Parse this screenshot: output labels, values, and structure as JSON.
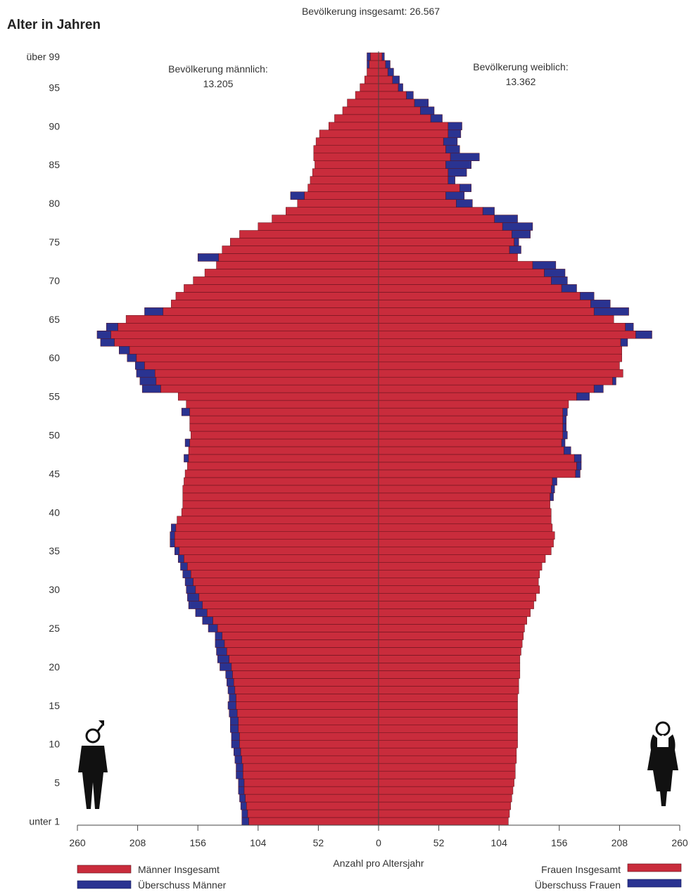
{
  "chart_data": {
    "type": "bar",
    "subtype": "population-pyramid",
    "title": "Bevölkerung insgesamt: 26.567",
    "ylabel": "Alter in Jahren",
    "xlabel": "Anzahl pro Altersjahr",
    "male_label": "Bevölkerung männlich:",
    "male_total": "13.205",
    "female_label": "Bevölkerung weiblich:",
    "female_total": "13.362",
    "x_ticks": [
      "260",
      "208",
      "156",
      "104",
      "52",
      "0",
      "52",
      "104",
      "156",
      "208",
      "260"
    ],
    "y_ticks": [
      {
        "age": 0,
        "label": "unter 1"
      },
      {
        "age": 5,
        "label": "5"
      },
      {
        "age": 10,
        "label": "10"
      },
      {
        "age": 15,
        "label": "15"
      },
      {
        "age": 20,
        "label": "20"
      },
      {
        "age": 25,
        "label": "25"
      },
      {
        "age": 30,
        "label": "30"
      },
      {
        "age": 35,
        "label": "35"
      },
      {
        "age": 40,
        "label": "40"
      },
      {
        "age": 45,
        "label": "45"
      },
      {
        "age": 50,
        "label": "50"
      },
      {
        "age": 55,
        "label": "55"
      },
      {
        "age": 60,
        "label": "60"
      },
      {
        "age": 65,
        "label": "65"
      },
      {
        "age": 70,
        "label": "70"
      },
      {
        "age": 75,
        "label": "75"
      },
      {
        "age": 80,
        "label": "80"
      },
      {
        "age": 85,
        "label": "85"
      },
      {
        "age": 90,
        "label": "90"
      },
      {
        "age": 95,
        "label": "95"
      },
      {
        "age": 99,
        "label": "über 99"
      }
    ],
    "xlim": [
      -260,
      260
    ],
    "ages": [
      0,
      1,
      2,
      3,
      4,
      5,
      6,
      7,
      8,
      9,
      10,
      11,
      12,
      13,
      14,
      15,
      16,
      17,
      18,
      19,
      20,
      21,
      22,
      23,
      24,
      25,
      26,
      27,
      28,
      29,
      30,
      31,
      32,
      33,
      34,
      35,
      36,
      37,
      38,
      39,
      40,
      41,
      42,
      43,
      44,
      45,
      46,
      47,
      48,
      49,
      50,
      51,
      52,
      53,
      54,
      55,
      56,
      57,
      58,
      59,
      60,
      61,
      62,
      63,
      64,
      65,
      66,
      67,
      68,
      69,
      70,
      71,
      72,
      73,
      74,
      75,
      76,
      77,
      78,
      79,
      80,
      81,
      82,
      83,
      84,
      85,
      86,
      87,
      88,
      89,
      90,
      91,
      92,
      93,
      94,
      95,
      96,
      97,
      98,
      99
    ],
    "male": [
      112,
      113,
      114,
      115,
      116,
      116,
      117,
      117,
      118,
      119,
      120,
      120,
      121,
      121,
      122,
      123,
      123,
      124,
      125,
      126,
      127,
      129,
      131,
      133,
      135,
      139,
      143,
      148,
      152,
      155,
      158,
      160,
      162,
      165,
      168,
      172,
      176,
      176,
      175,
      174,
      170,
      169,
      169,
      169,
      168,
      167,
      165,
      164,
      164,
      163,
      162,
      163,
      163,
      163,
      166,
      173,
      188,
      192,
      193,
      202,
      209,
      215,
      228,
      231,
      225,
      218,
      186,
      179,
      175,
      168,
      160,
      150,
      140,
      138,
      135,
      128,
      120,
      104,
      92,
      80,
      70,
      64,
      61,
      59,
      57,
      55,
      56,
      56,
      54,
      51,
      43,
      38,
      31,
      27,
      20,
      16,
      12,
      10,
      8,
      7
    ],
    "male_over": [
      6,
      5,
      5,
      5,
      5,
      5,
      6,
      6,
      6,
      6,
      7,
      7,
      7,
      7,
      7,
      7,
      6,
      6,
      6,
      6,
      10,
      10,
      9,
      8,
      6,
      8,
      9,
      10,
      12,
      10,
      8,
      7,
      7,
      6,
      5,
      4,
      4,
      4,
      4,
      0,
      0,
      0,
      0,
      0,
      0,
      0,
      0,
      4,
      0,
      4,
      0,
      0,
      0,
      7,
      0,
      0,
      16,
      14,
      16,
      8,
      8,
      9,
      12,
      12,
      10,
      0,
      16,
      0,
      0,
      0,
      0,
      0,
      0,
      18,
      0,
      0,
      0,
      0,
      0,
      0,
      0,
      12,
      0,
      0,
      0,
      0,
      0,
      0,
      0,
      0,
      0,
      0,
      0,
      0,
      0,
      0,
      0,
      0,
      2,
      3
    ],
    "female": [
      112,
      113,
      114,
      115,
      116,
      117,
      118,
      118,
      119,
      119,
      120,
      120,
      120,
      120,
      120,
      120,
      120,
      121,
      121,
      122,
      122,
      122,
      123,
      124,
      125,
      126,
      128,
      131,
      134,
      136,
      139,
      138,
      139,
      141,
      144,
      149,
      151,
      152,
      150,
      149,
      149,
      148,
      148,
      149,
      150,
      170,
      171,
      169,
      160,
      158,
      159,
      159,
      159,
      159,
      164,
      171,
      186,
      202,
      211,
      208,
      210,
      210,
      209,
      222,
      213,
      203,
      186,
      183,
      174,
      158,
      149,
      143,
      133,
      120,
      113,
      117,
      115,
      107,
      100,
      90,
      67,
      58,
      70,
      60,
      60,
      58,
      62,
      58,
      56,
      60,
      60,
      45,
      36,
      31,
      24,
      17,
      12,
      8,
      6,
      3
    ],
    "female_over": [
      0,
      0,
      0,
      0,
      0,
      0,
      0,
      0,
      0,
      0,
      0,
      0,
      0,
      0,
      0,
      0,
      0,
      0,
      0,
      0,
      0,
      0,
      0,
      0,
      0,
      0,
      0,
      0,
      0,
      0,
      0,
      0,
      0,
      0,
      0,
      0,
      0,
      0,
      0,
      0,
      0,
      0,
      3,
      3,
      4,
      4,
      4,
      6,
      6,
      3,
      4,
      3,
      3,
      4,
      0,
      11,
      8,
      3,
      0,
      0,
      0,
      0,
      6,
      14,
      7,
      0,
      30,
      17,
      12,
      13,
      14,
      18,
      20,
      0,
      10,
      4,
      16,
      26,
      20,
      10,
      14,
      16,
      10,
      6,
      16,
      22,
      25,
      12,
      12,
      11,
      12,
      10,
      12,
      12,
      6,
      4,
      6,
      5,
      4,
      2
    ],
    "legend": {
      "male_total": "Männer Insgesamt",
      "male_surplus": "Überschuss Männer",
      "female_total": "Frauen Insgesamt",
      "female_surplus": "Überschuss Frauen"
    },
    "colors": {
      "total": "#c92c3c",
      "surplus": "#2a3391",
      "outline": "#5a1018",
      "axis": "#444444"
    }
  }
}
